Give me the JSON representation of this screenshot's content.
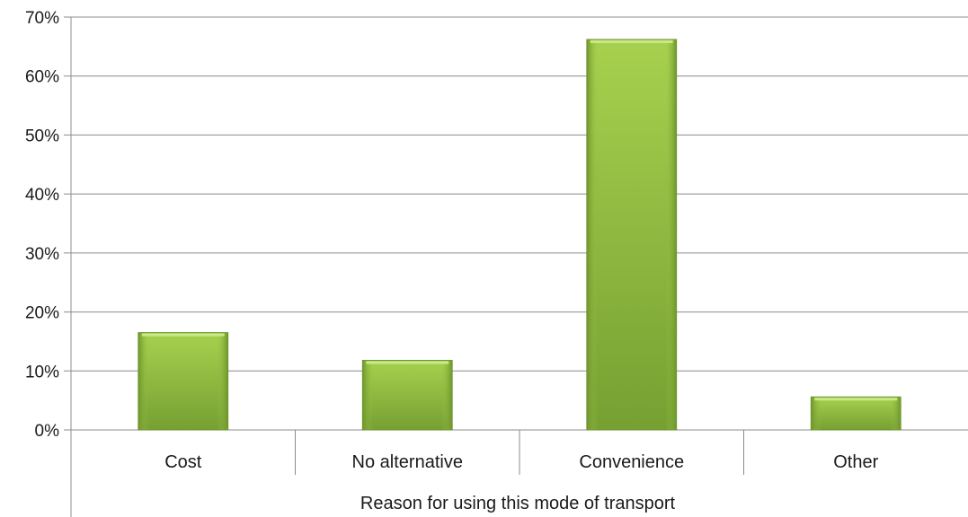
{
  "chart_data": {
    "type": "bar",
    "title": "",
    "xlabel": "Reason for using this mode of transport",
    "ylabel": "",
    "categories": [
      "Cost",
      "No alternative",
      "Convenience",
      "Other"
    ],
    "values": [
      16.5,
      11.8,
      66.2,
      5.6
    ],
    "ylim": [
      0,
      70
    ],
    "yticks": [
      0,
      10,
      20,
      30,
      40,
      50,
      60,
      70
    ],
    "ytick_labels": [
      "0%",
      "10%",
      "20%",
      "30%",
      "40%",
      "50%",
      "60%",
      "70%"
    ],
    "grid": true,
    "legend": "none",
    "bar_color": "#8db83c"
  }
}
